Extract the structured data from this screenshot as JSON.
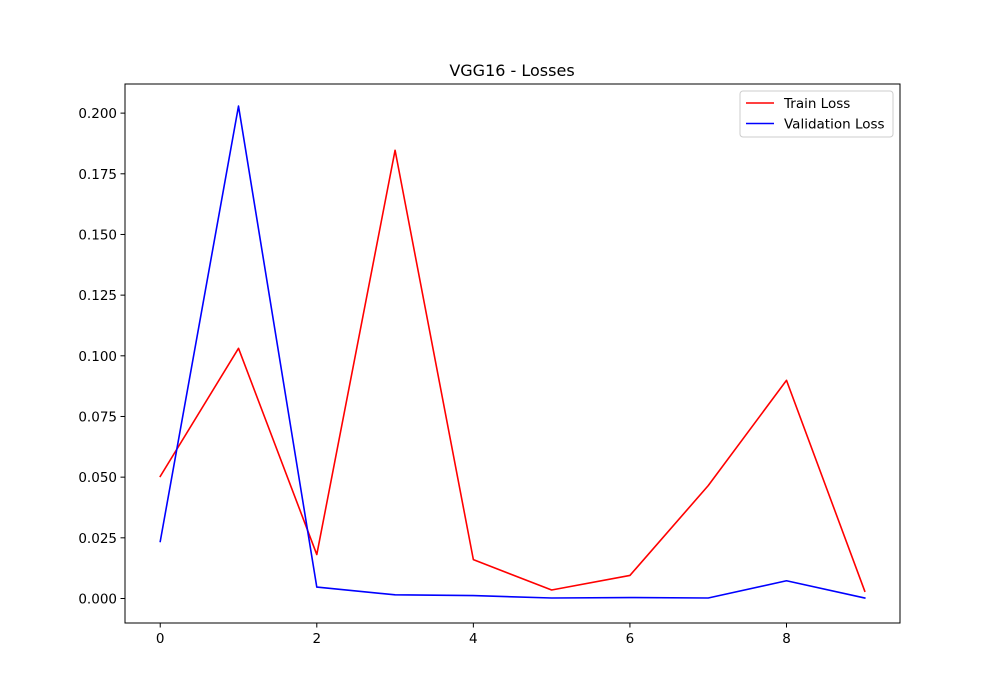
{
  "chart_data": {
    "type": "line",
    "title": "VGG16 - Losses",
    "xlabel": "",
    "ylabel": "",
    "x": [
      0,
      1,
      2,
      3,
      4,
      5,
      6,
      7,
      8,
      9
    ],
    "xlim": [
      -0.45,
      9.45
    ],
    "ylim": [
      -0.0101,
      0.212
    ],
    "x_ticks": [
      0,
      2,
      4,
      6,
      8
    ],
    "x_tick_labels": [
      "0",
      "2",
      "4",
      "6",
      "8"
    ],
    "y_ticks": [
      0.0,
      0.025,
      0.05,
      0.075,
      0.1,
      0.125,
      0.15,
      0.175,
      0.2
    ],
    "y_tick_labels": [
      "0.000",
      "0.025",
      "0.050",
      "0.075",
      "0.100",
      "0.125",
      "0.150",
      "0.175",
      "0.200"
    ],
    "grid": false,
    "legend_position": "top-right",
    "series": [
      {
        "name": "Train Loss",
        "color": "#ff0000",
        "values": [
          0.0503,
          0.1031,
          0.0181,
          0.1847,
          0.016,
          0.0035,
          0.0095,
          0.0465,
          0.0899,
          0.003
        ]
      },
      {
        "name": "Validation Loss",
        "color": "#0000ff",
        "values": [
          0.0235,
          0.2029,
          0.0047,
          0.0015,
          0.0012,
          0.0002,
          0.0004,
          0.0002,
          0.0073,
          0.0002
        ]
      }
    ]
  }
}
